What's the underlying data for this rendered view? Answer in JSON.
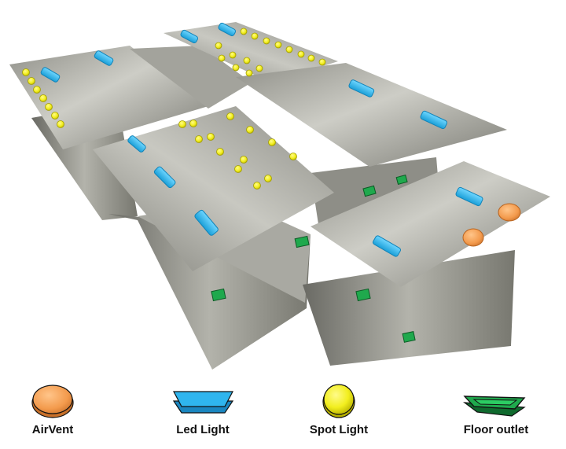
{
  "legend": {
    "airvent": {
      "label": "AirVent",
      "icon": "air-vent-icon",
      "color": "#F39A4C"
    },
    "ledlight": {
      "label": "Led Light",
      "icon": "led-light-icon",
      "color": "#2FB5EE"
    },
    "spotlight": {
      "label": "Spot Light",
      "icon": "spot-light-icon",
      "color": "#F2EE1E"
    },
    "flooroutlet": {
      "label": "Floor outlet",
      "icon": "floor-outlet-icon",
      "color": "#1FA94D"
    }
  },
  "colors": {
    "panel_light": "#cfcfc8",
    "panel_mid": "#9d9d95",
    "panel_dark": "#6e6e68",
    "outline": "#111111"
  }
}
